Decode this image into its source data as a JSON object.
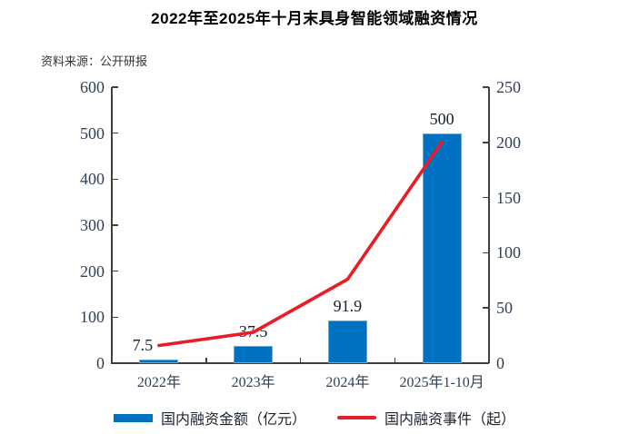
{
  "source_note": "资料来源：公开研报",
  "chart_data": {
    "type": "bar",
    "subtype": "combo-bar-line-dual-axis",
    "title": "2022年至2025年十月末具身智能领域融资情况",
    "categories": [
      "2022年",
      "2023年",
      "2024年",
      "2025年1-10月"
    ],
    "series": [
      {
        "name": "国内融资金额（亿元）",
        "type": "bar",
        "axis": "left",
        "color": "#0070C0",
        "values": [
          7.5,
          37.5,
          91.9,
          500
        ],
        "data_labels": [
          "7.5",
          "37.5",
          "91.9",
          "500"
        ]
      },
      {
        "name": "国内融资事件（起）",
        "type": "line",
        "axis": "right",
        "color": "#E91D25",
        "values": [
          16,
          28,
          76,
          200
        ]
      }
    ],
    "left_axis": {
      "min": 0,
      "max": 600,
      "step": 100,
      "tick_labels": [
        "0",
        "100",
        "200",
        "300",
        "400",
        "500",
        "600"
      ]
    },
    "right_axis": {
      "min": 0,
      "max": 250,
      "step": 50,
      "tick_labels": [
        "0",
        "50",
        "100",
        "150",
        "200",
        "250"
      ]
    },
    "grid": false,
    "legend_position": "bottom"
  }
}
